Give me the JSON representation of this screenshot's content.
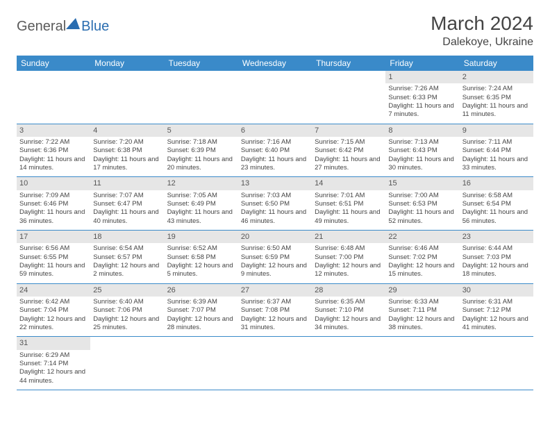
{
  "logo": {
    "part1": "General",
    "part2": "Blue"
  },
  "title": "March 2024",
  "location": "Dalekoye, Ukraine",
  "colors": {
    "header_bg": "#3a8ac9",
    "header_text": "#ffffff",
    "daynum_bg": "#e6e6e6",
    "row_border": "#3a8ac9",
    "logo_accent": "#2a6db0",
    "logo_gray": "#5a5a5a"
  },
  "dayNames": [
    "Sunday",
    "Monday",
    "Tuesday",
    "Wednesday",
    "Thursday",
    "Friday",
    "Saturday"
  ],
  "weeks": [
    [
      {
        "empty": true
      },
      {
        "empty": true
      },
      {
        "empty": true
      },
      {
        "empty": true
      },
      {
        "empty": true
      },
      {
        "n": "1",
        "sr": "7:26 AM",
        "ss": "6:33 PM",
        "dl": "11 hours and 7 minutes."
      },
      {
        "n": "2",
        "sr": "7:24 AM",
        "ss": "6:35 PM",
        "dl": "11 hours and 11 minutes."
      }
    ],
    [
      {
        "n": "3",
        "sr": "7:22 AM",
        "ss": "6:36 PM",
        "dl": "11 hours and 14 minutes."
      },
      {
        "n": "4",
        "sr": "7:20 AM",
        "ss": "6:38 PM",
        "dl": "11 hours and 17 minutes."
      },
      {
        "n": "5",
        "sr": "7:18 AM",
        "ss": "6:39 PM",
        "dl": "11 hours and 20 minutes."
      },
      {
        "n": "6",
        "sr": "7:16 AM",
        "ss": "6:40 PM",
        "dl": "11 hours and 23 minutes."
      },
      {
        "n": "7",
        "sr": "7:15 AM",
        "ss": "6:42 PM",
        "dl": "11 hours and 27 minutes."
      },
      {
        "n": "8",
        "sr": "7:13 AM",
        "ss": "6:43 PM",
        "dl": "11 hours and 30 minutes."
      },
      {
        "n": "9",
        "sr": "7:11 AM",
        "ss": "6:44 PM",
        "dl": "11 hours and 33 minutes."
      }
    ],
    [
      {
        "n": "10",
        "sr": "7:09 AM",
        "ss": "6:46 PM",
        "dl": "11 hours and 36 minutes."
      },
      {
        "n": "11",
        "sr": "7:07 AM",
        "ss": "6:47 PM",
        "dl": "11 hours and 40 minutes."
      },
      {
        "n": "12",
        "sr": "7:05 AM",
        "ss": "6:49 PM",
        "dl": "11 hours and 43 minutes."
      },
      {
        "n": "13",
        "sr": "7:03 AM",
        "ss": "6:50 PM",
        "dl": "11 hours and 46 minutes."
      },
      {
        "n": "14",
        "sr": "7:01 AM",
        "ss": "6:51 PM",
        "dl": "11 hours and 49 minutes."
      },
      {
        "n": "15",
        "sr": "7:00 AM",
        "ss": "6:53 PM",
        "dl": "11 hours and 52 minutes."
      },
      {
        "n": "16",
        "sr": "6:58 AM",
        "ss": "6:54 PM",
        "dl": "11 hours and 56 minutes."
      }
    ],
    [
      {
        "n": "17",
        "sr": "6:56 AM",
        "ss": "6:55 PM",
        "dl": "11 hours and 59 minutes."
      },
      {
        "n": "18",
        "sr": "6:54 AM",
        "ss": "6:57 PM",
        "dl": "12 hours and 2 minutes."
      },
      {
        "n": "19",
        "sr": "6:52 AM",
        "ss": "6:58 PM",
        "dl": "12 hours and 5 minutes."
      },
      {
        "n": "20",
        "sr": "6:50 AM",
        "ss": "6:59 PM",
        "dl": "12 hours and 9 minutes."
      },
      {
        "n": "21",
        "sr": "6:48 AM",
        "ss": "7:00 PM",
        "dl": "12 hours and 12 minutes."
      },
      {
        "n": "22",
        "sr": "6:46 AM",
        "ss": "7:02 PM",
        "dl": "12 hours and 15 minutes."
      },
      {
        "n": "23",
        "sr": "6:44 AM",
        "ss": "7:03 PM",
        "dl": "12 hours and 18 minutes."
      }
    ],
    [
      {
        "n": "24",
        "sr": "6:42 AM",
        "ss": "7:04 PM",
        "dl": "12 hours and 22 minutes."
      },
      {
        "n": "25",
        "sr": "6:40 AM",
        "ss": "7:06 PM",
        "dl": "12 hours and 25 minutes."
      },
      {
        "n": "26",
        "sr": "6:39 AM",
        "ss": "7:07 PM",
        "dl": "12 hours and 28 minutes."
      },
      {
        "n": "27",
        "sr": "6:37 AM",
        "ss": "7:08 PM",
        "dl": "12 hours and 31 minutes."
      },
      {
        "n": "28",
        "sr": "6:35 AM",
        "ss": "7:10 PM",
        "dl": "12 hours and 34 minutes."
      },
      {
        "n": "29",
        "sr": "6:33 AM",
        "ss": "7:11 PM",
        "dl": "12 hours and 38 minutes."
      },
      {
        "n": "30",
        "sr": "6:31 AM",
        "ss": "7:12 PM",
        "dl": "12 hours and 41 minutes."
      }
    ],
    [
      {
        "n": "31",
        "sr": "6:29 AM",
        "ss": "7:14 PM",
        "dl": "12 hours and 44 minutes."
      },
      {
        "empty": true
      },
      {
        "empty": true
      },
      {
        "empty": true
      },
      {
        "empty": true
      },
      {
        "empty": true
      },
      {
        "empty": true
      }
    ]
  ],
  "labels": {
    "sunrise": "Sunrise: ",
    "sunset": "Sunset: ",
    "daylight": "Daylight: "
  }
}
